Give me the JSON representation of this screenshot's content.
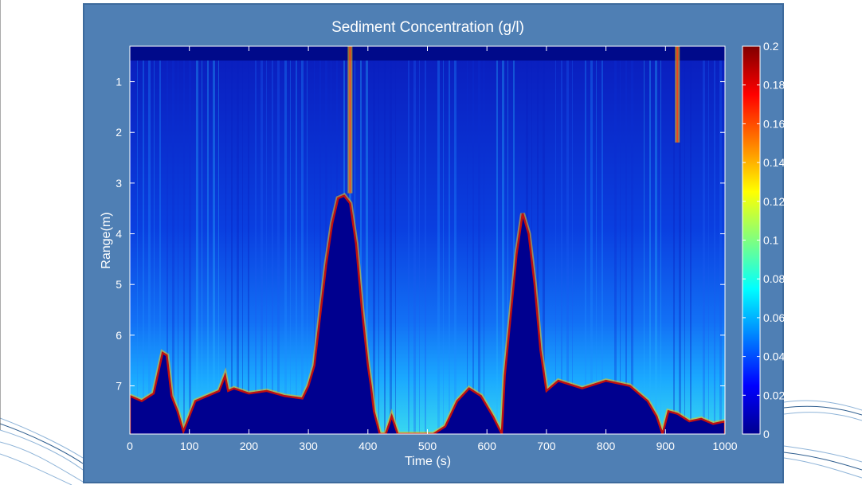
{
  "colors": {
    "panel_bg": "#4f7fb4",
    "plot_bg": "#00008f",
    "colormap": "jet"
  },
  "chart_data": {
    "type": "heatmap",
    "title": "Sediment Concentration (g/l)",
    "xlabel": "Time (s)",
    "ylabel": "Range(m)",
    "xlim": [
      0,
      1000
    ],
    "ylim": [
      7.95,
      0.3
    ],
    "y_reversed": true,
    "x_ticks": [
      0,
      100,
      200,
      300,
      400,
      500,
      600,
      700,
      800,
      900,
      1000
    ],
    "x_tick_labels": [
      "0",
      "100",
      "200",
      "300",
      "400",
      "500",
      "600",
      "700",
      "800",
      "900",
      "1000"
    ],
    "y_ticks": [
      1,
      2,
      3,
      4,
      5,
      6,
      7
    ],
    "y_tick_labels": [
      "1",
      "2",
      "3",
      "4",
      "5",
      "6",
      "7"
    ],
    "colorbar": {
      "min": 0,
      "max": 0.2,
      "ticks": [
        0,
        0.02,
        0.04,
        0.06,
        0.08,
        0.1,
        0.12,
        0.14,
        0.16,
        0.18,
        0.2
      ],
      "tick_labels": [
        "0",
        "0.02",
        "0.04",
        "0.06",
        "0.08",
        "0.1",
        "0.12",
        "0.14",
        "0.16",
        "0.18",
        "0.2"
      ]
    },
    "bed_profile": {
      "description_units": "time (s) vs range (m) of the seabed boundary",
      "time": [
        0,
        20,
        40,
        55,
        62,
        70,
        80,
        90,
        100,
        110,
        130,
        150,
        160,
        165,
        175,
        200,
        230,
        260,
        290,
        300,
        310,
        320,
        330,
        340,
        350,
        360,
        370,
        380,
        390,
        400,
        405,
        410,
        420,
        430,
        440,
        450,
        470,
        490,
        510,
        530,
        550,
        570,
        590,
        610,
        625,
        630,
        640,
        650,
        660,
        670,
        680,
        690,
        700,
        720,
        760,
        800,
        840,
        870,
        885,
        895,
        905,
        920,
        940,
        960,
        980,
        1000
      ],
      "range": [
        7.2,
        7.3,
        7.15,
        6.35,
        6.4,
        7.2,
        7.5,
        7.9,
        7.6,
        7.3,
        7.2,
        7.1,
        6.8,
        7.1,
        7.05,
        7.15,
        7.1,
        7.2,
        7.25,
        7.0,
        6.6,
        5.6,
        4.6,
        3.8,
        3.3,
        3.25,
        3.4,
        4.2,
        5.5,
        6.6,
        7.0,
        7.5,
        7.95,
        7.95,
        7.6,
        7.95,
        7.95,
        7.95,
        7.95,
        7.8,
        7.3,
        7.05,
        7.2,
        7.6,
        7.95,
        6.8,
        5.6,
        4.4,
        3.6,
        4.0,
        5.0,
        6.3,
        7.1,
        6.9,
        7.05,
        6.9,
        7.0,
        7.3,
        7.6,
        7.95,
        7.5,
        7.55,
        7.7,
        7.65,
        7.75,
        7.7
      ]
    },
    "columns_of_note": [
      {
        "time": 370,
        "range_top": 0.3,
        "range_bottom": 3.2,
        "value": "high"
      },
      {
        "time": 920,
        "range_top": 0.3,
        "range_bottom": 2.2,
        "value": "high"
      }
    ]
  }
}
